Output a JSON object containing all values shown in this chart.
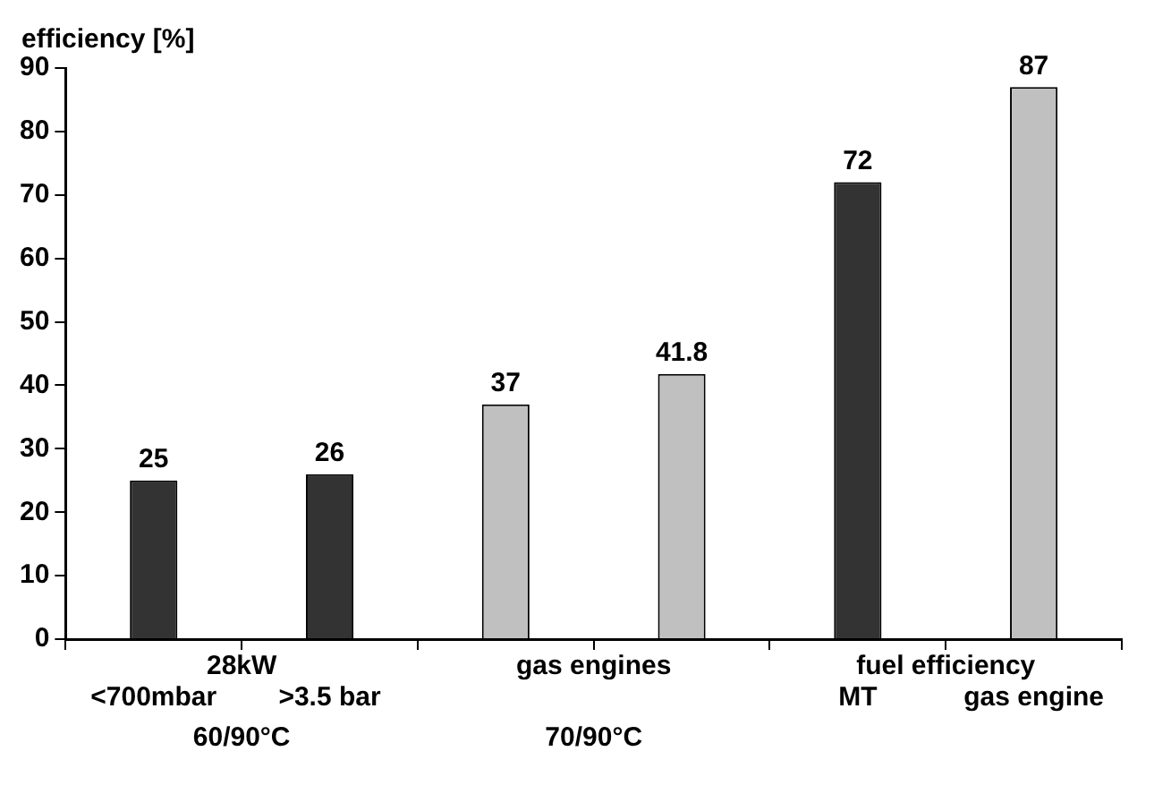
{
  "chart_data": {
    "type": "bar",
    "ylabel": "efficiency [%]",
    "categories": [
      "<700mbar",
      ">3.5 bar",
      null,
      null,
      "MT",
      "gas engine"
    ],
    "values": [
      25,
      26,
      37,
      41.8,
      72,
      87
    ],
    "colors": [
      "#333333",
      "#333333",
      "#c0c0c0",
      "#c0c0c0",
      "#333333",
      "#c0c0c0"
    ],
    "ylim": [
      0,
      90
    ],
    "yticks": [
      0,
      10,
      20,
      30,
      40,
      50,
      60,
      70,
      80,
      90
    ],
    "grid": false,
    "data_labels": true,
    "annotations": [
      "28kW",
      "60/90°C",
      "gas engines",
      "70/90°C",
      "fuel efficiency"
    ]
  }
}
